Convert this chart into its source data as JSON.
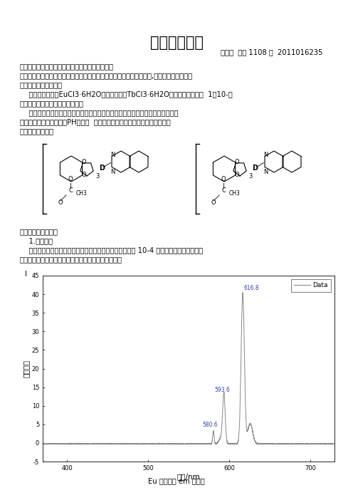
{
  "title": "催化实验报告",
  "subtitle": "赵思琪  应化 1108 班  2011016235",
  "sec1": "一．实验名称：稀土有机配合物的制备及性能测定",
  "sec2": "二．实验目的：掌握稀土盐和稀土有机配合物的制备方法以及荧光光谱,红外光谱的分析用。",
  "sec3": "三．实验仪器和药品：",
  "reagent1": "    药品：氯化铕（EuCl3·6H2O），氯化铽（TbCl3·6H2O），乙酰水杨酸，  1，10-邻",
  "reagent2": "菲咯啉，乙醇，三乙胺，二氯甲烷",
  "instr1": "    仪器：荧光灯，电磁搅拌，水泵，干燥器，沙板漏斗、抽滤瓶、烧杯、玻璃棒、",
  "instr2": "容量瓶、自封袋、角匙、PH试纸，  红外光谱仪、荧光光谱仪和紫外光谱仪。",
  "sec4": "四．配合物结构：",
  "sec5": "五．实验结果分析：",
  "sub1": "    1.荧光分析",
  "para1": "    称取一定量配合物样品溶解于二氯甲烷中，配制成浓度为 10-4 的样品溶液，于荧光分光",
  "para2": "光度计光谱测得配合物的荧光发射光谱图，如图所示：",
  "graph_i_label": "I",
  "xlabel": "波长/nm",
  "ylabel": "荧光强度",
  "legend_label": "Data",
  "caption": "Eu 配合物的 em 光谱图",
  "ylim": [
    -5,
    45
  ],
  "xlim": [
    370,
    730
  ],
  "xticks": [
    400,
    500,
    600,
    700
  ],
  "yticks": [
    -5,
    0,
    5,
    10,
    15,
    20,
    25,
    30,
    35,
    40,
    45
  ],
  "peak1_x": 580.6,
  "peak1_y": 3.5,
  "peak2_x": 593.6,
  "peak2_y": 12.5,
  "peak3_x": 616.8,
  "peak3_y": 40.5,
  "line_color": "#888888",
  "peak_label_color": "#3344aa",
  "bg_color": "#ffffff"
}
